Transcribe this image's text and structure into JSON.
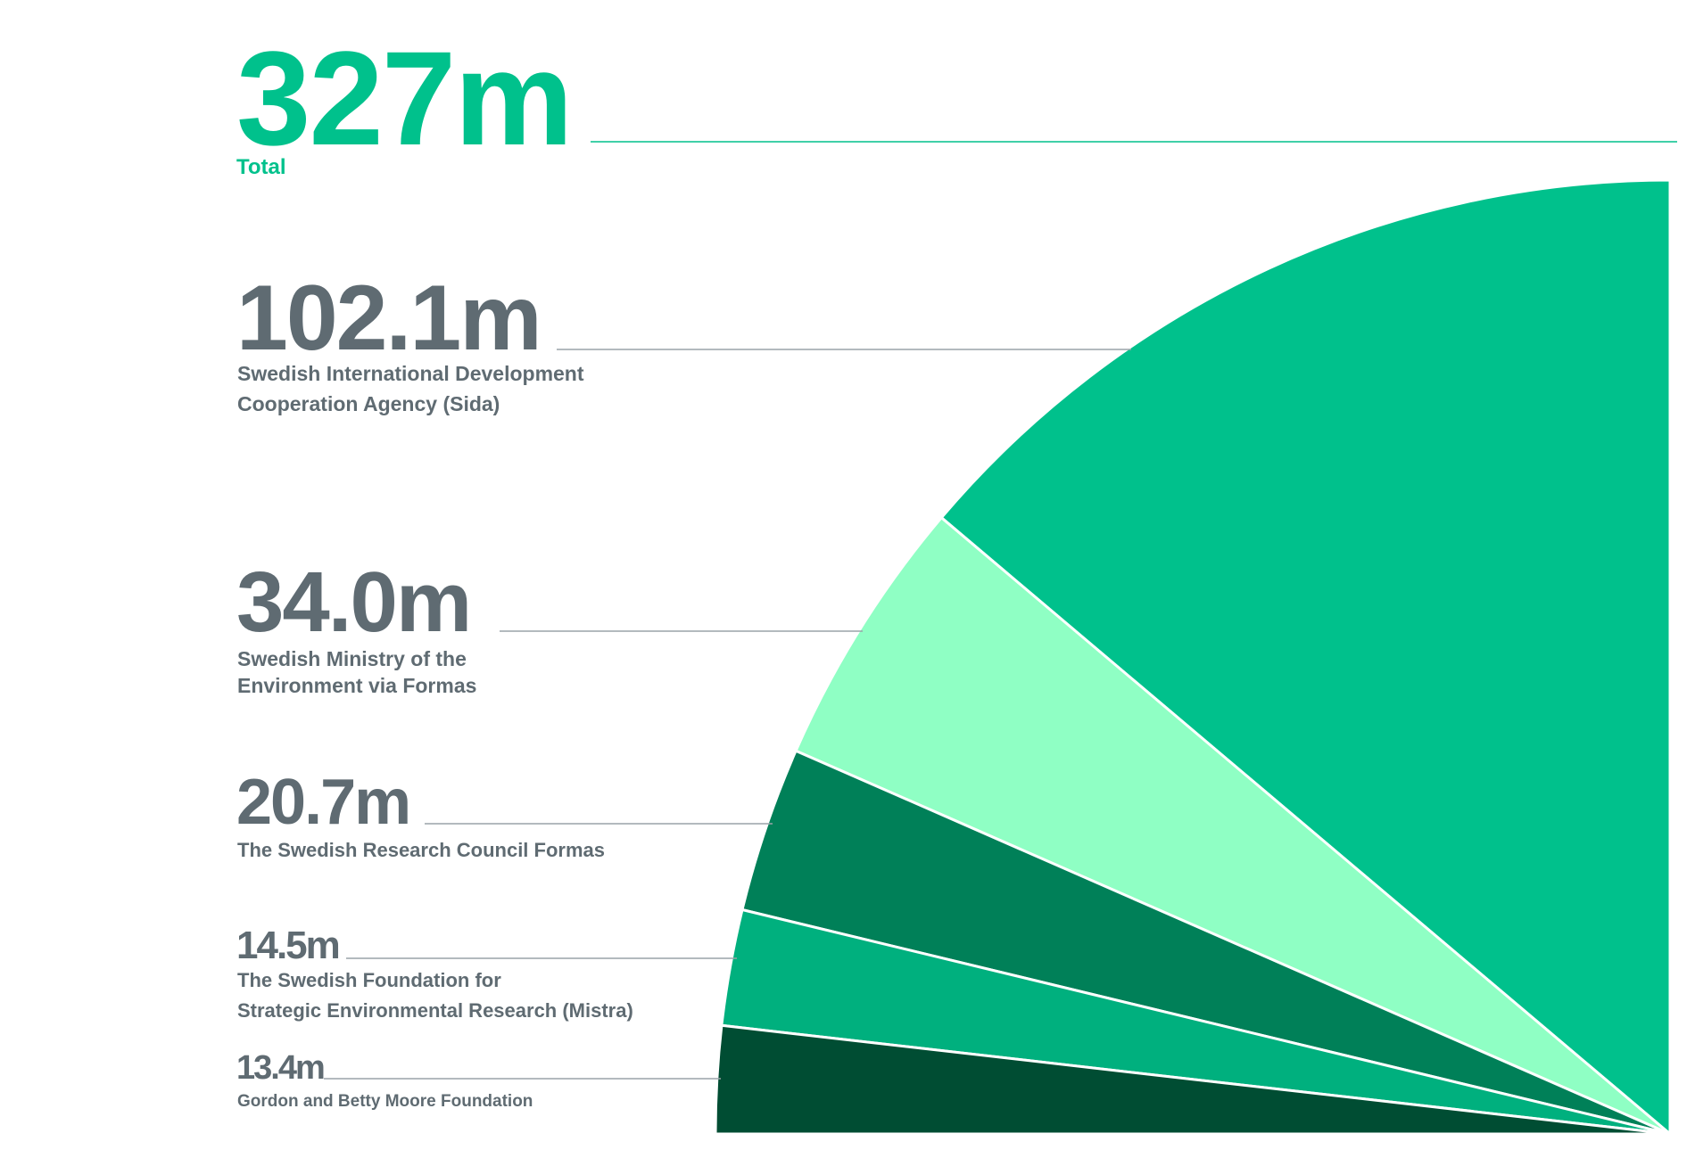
{
  "chart_data": {
    "type": "pie",
    "total": {
      "value": "327m",
      "label": "Total"
    },
    "segments": [
      {
        "value_text": "102.1m",
        "value": 102.1,
        "label_lines": [
          "Swedish International Development",
          "Cooperation Agency (Sida)"
        ],
        "color": "#00c18c"
      },
      {
        "value_text": "34.0m",
        "value": 34.0,
        "label_lines": [
          "Swedish Ministry of the",
          "Environment via Formas"
        ],
        "color": "#8fffc4"
      },
      {
        "value_text": "20.7m",
        "value": 20.7,
        "label_lines": [
          "The Swedish Research Council Formas"
        ],
        "color": "#008058"
      },
      {
        "value_text": "14.5m",
        "value": 14.5,
        "label_lines": [
          "The Swedish Foundation for",
          "Strategic Environmental Research (Mistra)"
        ],
        "color": "#00b07e"
      },
      {
        "value_text": "13.4m",
        "value": 13.4,
        "label_lines": [
          "Gordon and Betty Moore Foundation"
        ],
        "color": "#004d33"
      }
    ]
  },
  "colors": {
    "accent": "#00c18c",
    "text": "#5f6b72",
    "rule": "#9aa3a8"
  }
}
